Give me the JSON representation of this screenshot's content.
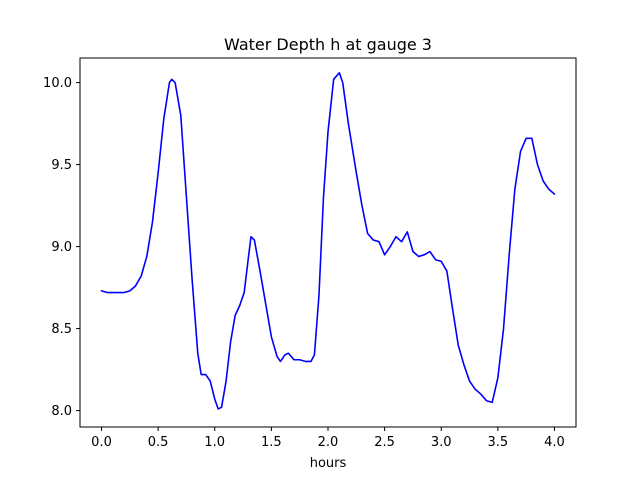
{
  "chart_data": {
    "type": "line",
    "title": "Water Depth h at gauge 3",
    "xlabel": "hours",
    "ylabel": "",
    "xlim": [
      -0.19,
      4.19
    ],
    "ylim": [
      7.9,
      10.15
    ],
    "xticks": [
      0.0,
      0.5,
      1.0,
      1.5,
      2.0,
      2.5,
      3.0,
      3.5,
      4.0
    ],
    "xtick_labels": [
      "0.0",
      "0.5",
      "1.0",
      "1.5",
      "2.0",
      "2.5",
      "3.0",
      "3.5",
      "4.0"
    ],
    "yticks": [
      8.0,
      8.5,
      9.0,
      9.5,
      10.0
    ],
    "ytick_labels": [
      "8.0",
      "8.5",
      "9.0",
      "9.5",
      "10.0"
    ],
    "grid": false,
    "series": [
      {
        "color": "#0000ff",
        "points": [
          [
            0.0,
            8.73
          ],
          [
            0.05,
            8.72
          ],
          [
            0.1,
            8.72
          ],
          [
            0.15,
            8.72
          ],
          [
            0.2,
            8.72
          ],
          [
            0.25,
            8.73
          ],
          [
            0.3,
            8.76
          ],
          [
            0.35,
            8.82
          ],
          [
            0.4,
            8.94
          ],
          [
            0.45,
            9.15
          ],
          [
            0.5,
            9.45
          ],
          [
            0.55,
            9.78
          ],
          [
            0.6,
            10.0
          ],
          [
            0.62,
            10.02
          ],
          [
            0.65,
            10.0
          ],
          [
            0.7,
            9.8
          ],
          [
            0.75,
            9.3
          ],
          [
            0.8,
            8.8
          ],
          [
            0.85,
            8.35
          ],
          [
            0.88,
            8.22
          ],
          [
            0.92,
            8.22
          ],
          [
            0.96,
            8.18
          ],
          [
            1.0,
            8.07
          ],
          [
            1.03,
            8.01
          ],
          [
            1.06,
            8.02
          ],
          [
            1.1,
            8.18
          ],
          [
            1.14,
            8.42
          ],
          [
            1.18,
            8.58
          ],
          [
            1.22,
            8.64
          ],
          [
            1.26,
            8.72
          ],
          [
            1.3,
            8.95
          ],
          [
            1.32,
            9.06
          ],
          [
            1.35,
            9.04
          ],
          [
            1.4,
            8.85
          ],
          [
            1.45,
            8.65
          ],
          [
            1.5,
            8.45
          ],
          [
            1.55,
            8.33
          ],
          [
            1.58,
            8.3
          ],
          [
            1.62,
            8.34
          ],
          [
            1.65,
            8.35
          ],
          [
            1.7,
            8.31
          ],
          [
            1.75,
            8.31
          ],
          [
            1.8,
            8.3
          ],
          [
            1.85,
            8.3
          ],
          [
            1.88,
            8.34
          ],
          [
            1.92,
            8.7
          ],
          [
            1.96,
            9.3
          ],
          [
            2.0,
            9.7
          ],
          [
            2.05,
            10.02
          ],
          [
            2.1,
            10.06
          ],
          [
            2.13,
            10.0
          ],
          [
            2.18,
            9.75
          ],
          [
            2.25,
            9.45
          ],
          [
            2.3,
            9.25
          ],
          [
            2.35,
            9.08
          ],
          [
            2.4,
            9.04
          ],
          [
            2.45,
            9.03
          ],
          [
            2.5,
            8.95
          ],
          [
            2.55,
            9.0
          ],
          [
            2.6,
            9.06
          ],
          [
            2.65,
            9.03
          ],
          [
            2.7,
            9.09
          ],
          [
            2.75,
            8.97
          ],
          [
            2.8,
            8.94
          ],
          [
            2.85,
            8.95
          ],
          [
            2.9,
            8.97
          ],
          [
            2.95,
            8.92
          ],
          [
            3.0,
            8.91
          ],
          [
            3.05,
            8.85
          ],
          [
            3.1,
            8.62
          ],
          [
            3.15,
            8.4
          ],
          [
            3.2,
            8.28
          ],
          [
            3.25,
            8.18
          ],
          [
            3.3,
            8.13
          ],
          [
            3.35,
            8.1
          ],
          [
            3.4,
            8.06
          ],
          [
            3.45,
            8.05
          ],
          [
            3.5,
            8.2
          ],
          [
            3.55,
            8.5
          ],
          [
            3.6,
            8.95
          ],
          [
            3.65,
            9.35
          ],
          [
            3.7,
            9.58
          ],
          [
            3.75,
            9.66
          ],
          [
            3.8,
            9.66
          ],
          [
            3.85,
            9.5
          ],
          [
            3.9,
            9.4
          ],
          [
            3.95,
            9.35
          ],
          [
            4.0,
            9.32
          ]
        ]
      }
    ]
  }
}
